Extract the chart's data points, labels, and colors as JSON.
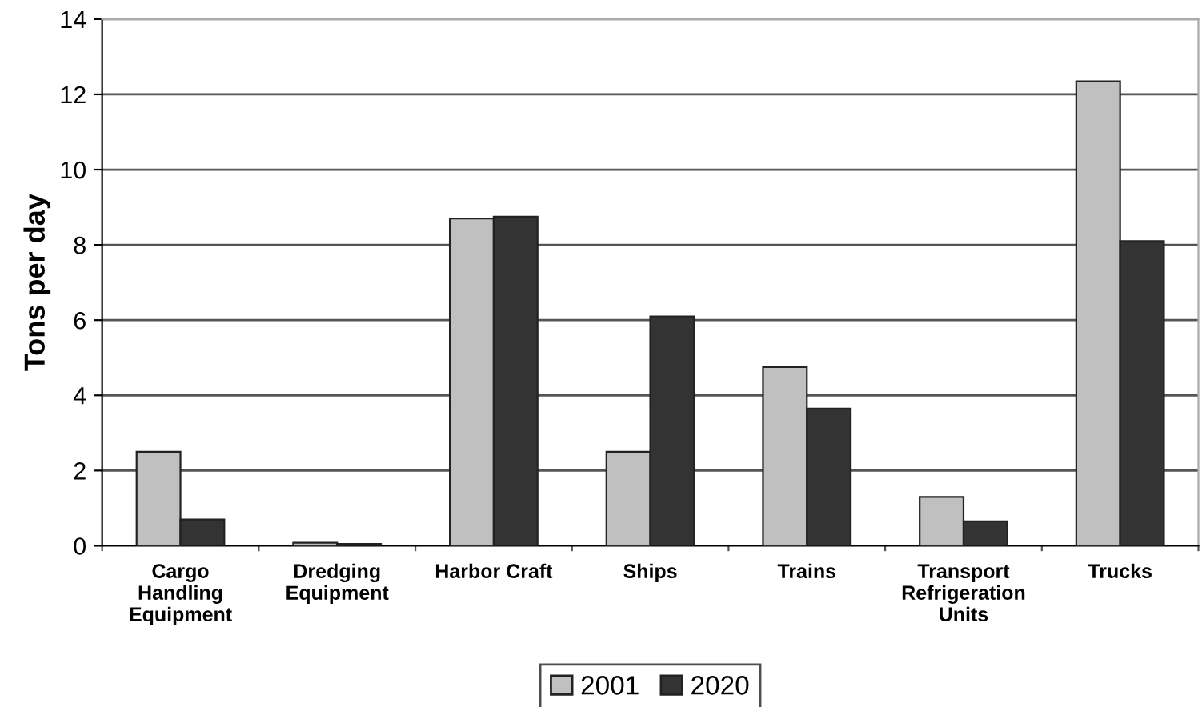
{
  "chart_data": {
    "type": "bar",
    "ylabel": "Tons per day",
    "categories": [
      "Cargo\nHandling\nEquipment",
      "Dredging\nEquipment",
      "Harbor Craft",
      "Ships",
      "Trains",
      "Transport\nRefrigeration\nUnits",
      "Trucks"
    ],
    "series": [
      {
        "name": "2001",
        "color": "#c0c0c0",
        "values": [
          2.5,
          0.08,
          8.7,
          2.5,
          4.75,
          1.3,
          12.35
        ]
      },
      {
        "name": "2020",
        "color": "#333333",
        "values": [
          0.7,
          0.05,
          8.75,
          6.1,
          3.65,
          0.65,
          8.1
        ]
      }
    ],
    "ylim": [
      0,
      14
    ],
    "yticks": [
      0,
      2,
      4,
      6,
      8,
      10,
      12,
      14
    ],
    "grid": "y",
    "legend": "bottom"
  }
}
